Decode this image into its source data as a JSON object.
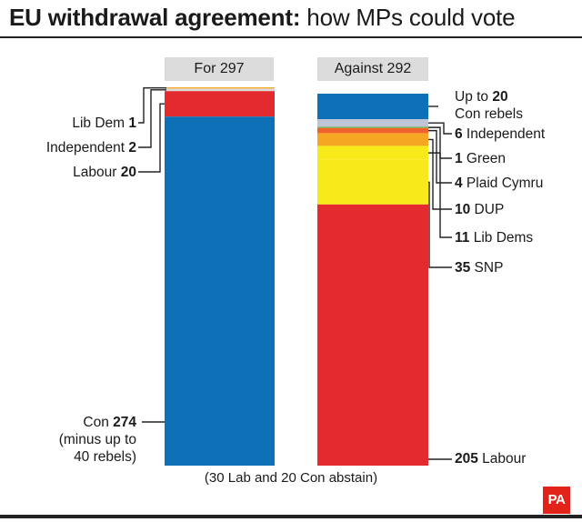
{
  "title": {
    "bold": "EU withdrawal agreement:",
    "rest": " how MPs could vote"
  },
  "note": "(30 Lab and 20 Con abstain)",
  "logo": "PA",
  "chart_data": {
    "type": "stacked-bar",
    "bars": [
      {
        "name": "For",
        "header": "For 297",
        "total": 297,
        "segments": [
          {
            "key": "libdem",
            "prefix": "Lib Dem ",
            "value_text": "1",
            "suffix": "",
            "value": 1,
            "color": "#f5a623"
          },
          {
            "key": "independent",
            "prefix": "Independent ",
            "value_text": "2",
            "suffix": "",
            "value": 2,
            "color": "#d9d9d9"
          },
          {
            "key": "labour",
            "prefix": "Labour ",
            "value_text": "20",
            "suffix": "",
            "value": 20,
            "color": "#e32a2e"
          },
          {
            "key": "con",
            "prefix": "Con ",
            "value_text": "274",
            "suffix": "",
            "extra": [
              "(minus up to",
              "40 rebels)"
            ],
            "value": 274,
            "color": "#0e71b8"
          }
        ]
      },
      {
        "name": "Against",
        "header": "Against 292",
        "total": 292,
        "segments": [
          {
            "key": "con_rebels",
            "prefix": "Up to ",
            "value_text": "20",
            "suffix": "",
            "extra": [
              "Con rebels"
            ],
            "value": 20,
            "color": "#0e71b8"
          },
          {
            "key": "independent",
            "prefix": "",
            "value_text": "6",
            "suffix": " Independent",
            "value": 6,
            "color": "#bfc5d6"
          },
          {
            "key": "green",
            "prefix": "",
            "value_text": "1",
            "suffix": " Green",
            "value": 1,
            "color": "#6ab04c"
          },
          {
            "key": "plaid",
            "prefix": "",
            "value_text": "4",
            "suffix": " Plaid Cymru",
            "value": 4,
            "color": "#f0622d"
          },
          {
            "key": "dup",
            "prefix": "",
            "value_text": "10",
            "suffix": " DUP",
            "value": 10,
            "color": "#f5a623"
          },
          {
            "key": "libdems",
            "prefix": "",
            "value_text": "11",
            "suffix": " Lib Dems",
            "value": 11,
            "color": "#f7e91a"
          },
          {
            "key": "snp",
            "prefix": "",
            "value_text": "35",
            "suffix": " SNP",
            "value": 35,
            "color": "#f7e91a"
          },
          {
            "key": "labour",
            "prefix": "",
            "value_text": "205",
            "suffix": " Labour",
            "value": 205,
            "color": "#e32a2e"
          }
        ]
      }
    ]
  }
}
